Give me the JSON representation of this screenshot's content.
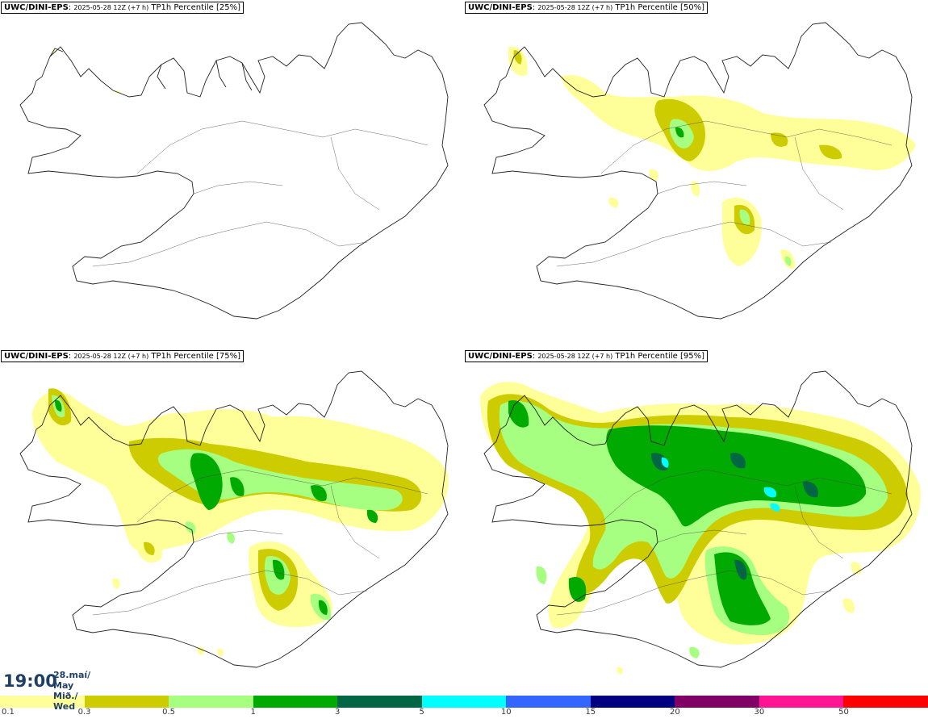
{
  "panels": [
    {
      "model": "UWC/DINI-EPS",
      "run": "2025-05-28 12Z (+7 h)",
      "field": "TP1h Percentile [25%]",
      "percentile": 25
    },
    {
      "model": "UWC/DINI-EPS",
      "run": "2025-05-28 12Z (+7 h)",
      "field": "TP1h Percentile [50%]",
      "percentile": 50
    },
    {
      "model": "UWC/DINI-EPS",
      "run": "2025-05-28 12Z (+7 h)",
      "field": "TP1h Percentile [75%]",
      "percentile": 75
    },
    {
      "model": "UWC/DINI-EPS",
      "run": "2025-05-28 12Z (+7 h)",
      "field": "TP1h Percentile [95%]",
      "percentile": 95
    }
  ],
  "valid_time": {
    "time": "19:00",
    "date_line1": "28.maí/ May",
    "date_line2": "Mið./ Wed"
  },
  "legend": {
    "colors": [
      "#ffff99",
      "#cccc00",
      "#a6ff80",
      "#00aa00",
      "#006644",
      "#00ffff",
      "#3366ff",
      "#000080",
      "#800066",
      "#ff1493",
      "#ff0000"
    ],
    "labels": [
      "0.1",
      "0.3",
      "0.5",
      "1",
      "3",
      "5",
      "10",
      "15",
      "20",
      "30",
      "50"
    ]
  }
}
